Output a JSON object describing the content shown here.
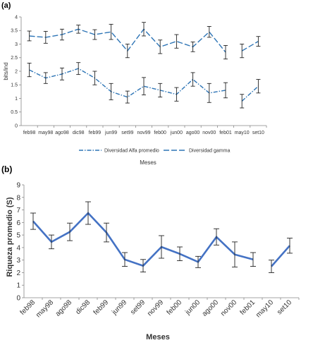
{
  "panels": {
    "a": {
      "label": "(a)"
    },
    "b": {
      "label": "(b)"
    }
  },
  "chart_data": [
    {
      "type": "line",
      "panel_label": "(a)",
      "categories": [
        "feb98",
        "may98",
        "ago98",
        "dic98",
        "feb99",
        "jun99",
        "set99",
        "nov99",
        "feb00",
        "jun00",
        "ago00",
        "nov00",
        "feb01",
        "may10",
        "set10"
      ],
      "xlabel": "Meses",
      "ylabel": "bits/ind",
      "ylim": [
        0,
        4
      ],
      "yticks": [
        "0",
        "0.5",
        "1",
        "1.5",
        "2",
        "2.5",
        "3",
        "3.5",
        "4"
      ],
      "ytick_values": [
        0,
        0.5,
        1,
        1.5,
        2,
        2.5,
        3,
        3.5,
        4
      ],
      "grid": false,
      "legend_position": "bottom",
      "line_breaks_after_index": [
        12
      ],
      "series": [
        {
          "name": "Diversidad Alfa promedio",
          "values": [
            2.05,
            1.75,
            1.9,
            2.1,
            1.75,
            1.25,
            1.05,
            1.45,
            1.3,
            1.15,
            1.7,
            1.2,
            1.3,
            0.9,
            1.45
          ],
          "error": [
            0.25,
            0.2,
            0.22,
            0.22,
            0.25,
            0.3,
            0.22,
            0.32,
            0.25,
            0.25,
            0.25,
            0.35,
            0.28,
            0.25,
            0.25
          ],
          "color": "#2e75b6",
          "dash": "dash-dot"
        },
        {
          "name": "Diversidad gamma",
          "values": [
            3.3,
            3.25,
            3.35,
            3.55,
            3.35,
            3.45,
            2.75,
            3.55,
            2.9,
            3.1,
            2.9,
            3.45,
            2.7,
            2.75,
            3.1
          ],
          "error": [
            0.18,
            0.22,
            0.2,
            0.15,
            0.18,
            0.28,
            0.25,
            0.25,
            0.25,
            0.25,
            0.18,
            0.2,
            0.25,
            0.25,
            0.18
          ],
          "color": "#2e75b6",
          "dash": "long-dash"
        }
      ]
    },
    {
      "type": "line",
      "panel_label": "(b)",
      "categories": [
        "feb98",
        "may98",
        "ago98",
        "dic98",
        "feb99",
        "jun99",
        "set99",
        "nov99",
        "feb00",
        "jun00",
        "ago00",
        "nov00",
        "feb01",
        "may10",
        "set10"
      ],
      "xlabel": "Meses",
      "ylabel": "Riqueza promedio (S)",
      "ylim": [
        0,
        9
      ],
      "yticks": [
        "0",
        "1",
        "2",
        "3",
        "4",
        "5",
        "6",
        "7",
        "8",
        "9"
      ],
      "ytick_values": [
        0,
        1,
        2,
        3,
        4,
        5,
        6,
        7,
        8,
        9
      ],
      "grid": false,
      "line_breaks_after_index": [
        12
      ],
      "series": [
        {
          "values": [
            6.1,
            4.45,
            5.25,
            6.75,
            5.2,
            3.05,
            2.55,
            4.05,
            3.5,
            2.85,
            4.85,
            3.45,
            3.05,
            2.5,
            4.15
          ],
          "error": [
            0.65,
            0.55,
            0.7,
            0.9,
            0.75,
            0.55,
            0.5,
            0.9,
            0.55,
            0.45,
            0.65,
            1.0,
            0.55,
            0.5,
            0.6
          ],
          "color": "#4472c4"
        }
      ]
    }
  ]
}
